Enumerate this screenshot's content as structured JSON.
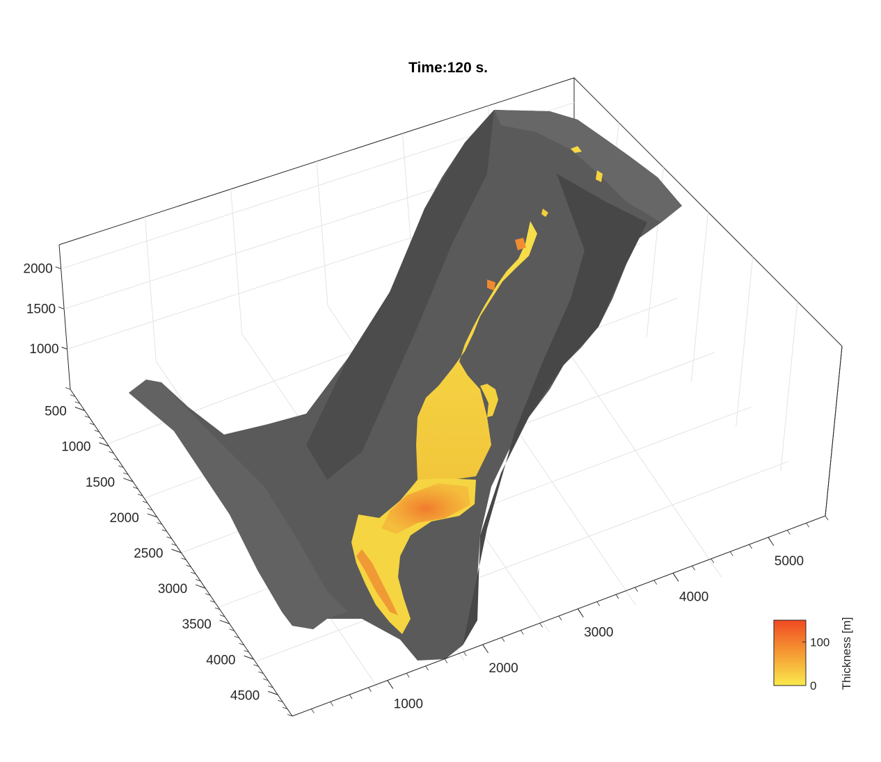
{
  "chart_data": {
    "type": "surface-3d",
    "title": "Time:120 s.",
    "axes": {
      "x": {
        "ticks": [
          1000,
          2000,
          3000,
          4000,
          5000
        ],
        "tick_labels": [
          "1000",
          "2000",
          "3000",
          "4000",
          "5000"
        ],
        "label": ""
      },
      "y": {
        "ticks": [
          500,
          1000,
          1500,
          2000,
          2500,
          3000,
          3500,
          4000,
          4500
        ],
        "tick_labels": [
          "500",
          "1000",
          "1500",
          "2000",
          "2500",
          "3000",
          "3500",
          "4000",
          "4500"
        ],
        "label": ""
      },
      "z": {
        "ticks": [
          1000,
          1500,
          2000
        ],
        "tick_labels": [
          "1000",
          "1500",
          "2000"
        ],
        "label": ""
      }
    },
    "grid": true,
    "terrain_color": "#5a5a5a",
    "flow_color_low": "#fbe94d",
    "flow_color_high": "#f04a22",
    "colorbar": {
      "label": "Thickness [m]",
      "ticks": [
        0,
        100
      ],
      "tick_labels": [
        "0",
        "100"
      ],
      "range": [
        0,
        150
      ],
      "placement": "bottom-right"
    }
  }
}
